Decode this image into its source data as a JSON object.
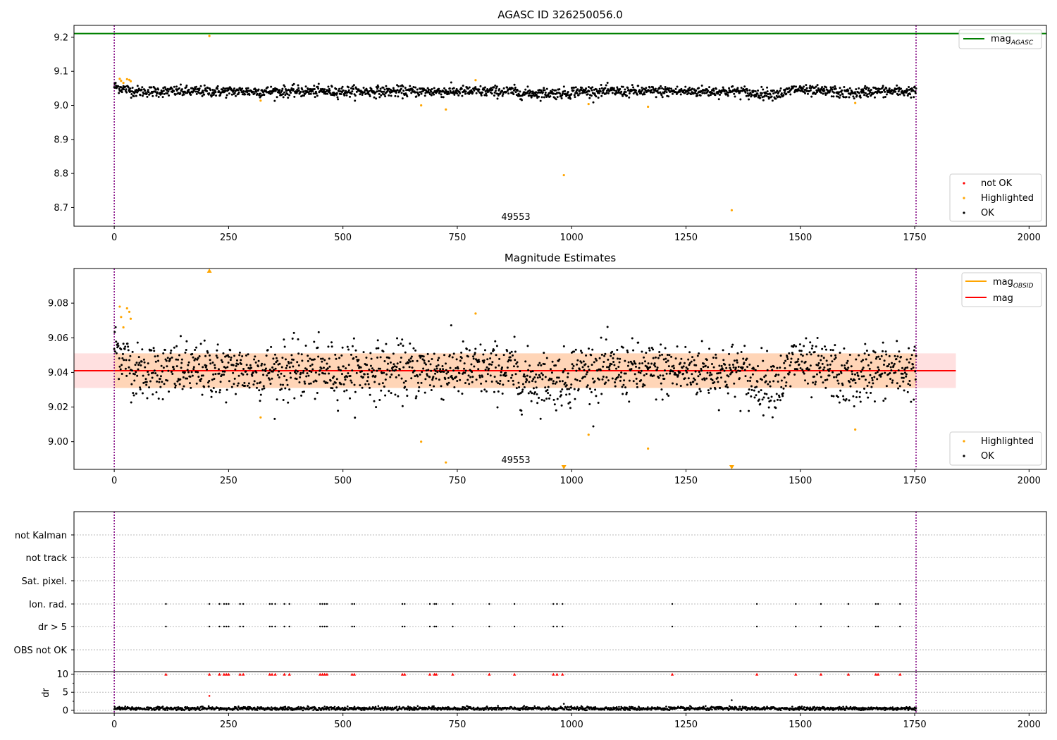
{
  "figure": {
    "title": "AGASC ID 326250056.0",
    "obsid_label": "49553"
  },
  "chart_data": [
    {
      "type": "scatter",
      "title": "AGASC ID 326250056.0",
      "xlim": [
        -88,
        2038
      ],
      "ylim": [
        8.645,
        9.235
      ],
      "x_ticks": [
        0,
        250,
        500,
        750,
        1000,
        1250,
        1500,
        1750,
        2000
      ],
      "y_ticks": [
        8.7,
        8.8,
        8.9,
        9.0,
        9.1,
        9.2
      ],
      "vlines": [
        0,
        1753
      ],
      "mag_agasc": 9.211,
      "annotation": {
        "text": "49553",
        "x": 877,
        "y": 8.66
      },
      "legend_lines": [
        {
          "label": "mag",
          "subscript": "AGASC",
          "color": "#008000"
        }
      ],
      "legend_points": [
        {
          "label": "not OK",
          "color": "#ff0000"
        },
        {
          "label": "Highlighted",
          "color": "#ffa500"
        },
        {
          "label": "OK",
          "color": "#000000"
        }
      ],
      "ok_series": {
        "name": "OK",
        "x_range": [
          0,
          1753
        ],
        "n": 1750,
        "center": 9.041,
        "sigma": 0.008
      },
      "highlighted": [
        [
          12,
          9.078
        ],
        [
          15,
          9.072
        ],
        [
          20,
          9.066
        ],
        [
          28,
          9.077
        ],
        [
          33,
          9.075
        ],
        [
          36,
          9.071
        ],
        [
          208,
          9.204
        ],
        [
          320,
          9.014
        ],
        [
          671,
          9.0
        ],
        [
          725,
          8.988
        ],
        [
          790,
          9.074
        ],
        [
          983,
          8.795
        ],
        [
          1037,
          9.004
        ],
        [
          1167,
          8.996
        ],
        [
          1350,
          8.692
        ],
        [
          1620,
          9.007
        ]
      ]
    },
    {
      "type": "scatter",
      "title": "Magnitude Estimates",
      "xlim": [
        -88,
        2038
      ],
      "ylim": [
        8.984,
        9.1
      ],
      "x_ticks": [
        0,
        250,
        500,
        750,
        1000,
        1250,
        1500,
        1750,
        2000
      ],
      "y_ticks": [
        9.0,
        9.02,
        9.04,
        9.06,
        9.08
      ],
      "vlines": [
        0,
        1753
      ],
      "mag": 9.041,
      "mag_band": [
        9.031,
        9.051
      ],
      "mag_line_x": [
        -88,
        1840
      ],
      "annotation": {
        "text": "49553",
        "x": 877,
        "y": 8.9865
      },
      "legend_lines": [
        {
          "label": "mag",
          "subscript": "OBSID",
          "color": "#ffa500"
        },
        {
          "label": "mag",
          "subscript": "",
          "color": "#ff0000"
        }
      ],
      "legend_points": [
        {
          "label": "Highlighted",
          "color": "#ffa500"
        },
        {
          "label": "OK",
          "color": "#000000"
        }
      ],
      "off_scale_low": [
        983,
        1350
      ],
      "off_scale_high": [
        208
      ]
    },
    {
      "type": "scatter",
      "xlim": [
        -88,
        2038
      ],
      "categories": [
        "not Kalman",
        "not track",
        "Sat. pixel.",
        "Ion. rad.",
        "dr > 5",
        "OBS not OK"
      ],
      "flag_x": [
        113,
        208,
        230,
        240,
        245,
        250,
        275,
        282,
        340,
        345,
        352,
        372,
        383,
        450,
        455,
        460,
        465,
        520,
        525,
        630,
        635,
        690,
        700,
        704,
        740,
        820,
        875,
        960,
        968,
        980,
        1220,
        1405,
        1490,
        1545,
        1605,
        1665,
        1670,
        1718
      ],
      "flag_rows": [
        "Ion. rad.",
        "dr > 5"
      ]
    },
    {
      "type": "scatter",
      "ylabel": "dr",
      "xlim": [
        -88,
        2038
      ],
      "ylim": [
        -0.8,
        10.7
      ],
      "x_ticks": [
        0,
        250,
        500,
        750,
        1000,
        1250,
        1500,
        1750,
        2000
      ],
      "y_ticks": [
        0,
        5,
        10
      ],
      "vlines": [
        0,
        1753
      ],
      "dr_outliers": [
        [
          208,
          4.0
        ],
        [
          1350,
          2.8
        ],
        [
          983,
          1.8
        ]
      ],
      "dr_capped_at": 10
    }
  ]
}
